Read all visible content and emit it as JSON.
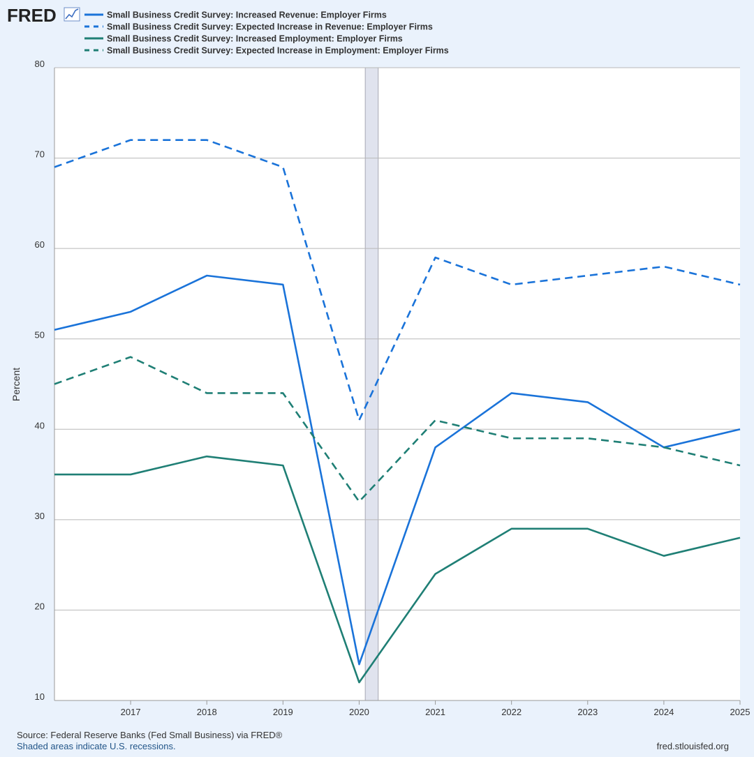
{
  "brand": {
    "logo_text": "FRED"
  },
  "colors": {
    "blue": "#1a73d9",
    "teal": "#1f7f75",
    "background": "#eaf2fc",
    "plot_background": "#ffffff",
    "grid": "#b8b8b8",
    "recession": "#e0e3ee"
  },
  "footer": {
    "source": "Source: Federal Reserve Banks (Fed Small Business) via FRED®",
    "note": "Shaded areas indicate U.S. recessions.",
    "site": "fred.stlouisfed.org"
  },
  "chart_data": {
    "type": "line",
    "title": "",
    "xlabel": "",
    "ylabel": "Percent",
    "x": [
      2016,
      2017,
      2018,
      2019,
      2020,
      2021,
      2022,
      2023,
      2024,
      2025
    ],
    "x_tick_labels": [
      "2017",
      "2018",
      "2019",
      "2020",
      "2021",
      "2022",
      "2023",
      "2024",
      "2025"
    ],
    "y_ticks": [
      10,
      20,
      30,
      40,
      50,
      60,
      70,
      80
    ],
    "xlim": [
      2016,
      2025
    ],
    "ylim": [
      10,
      80
    ],
    "grid": "horizontal",
    "legend_position": "top-left",
    "recessions": [
      {
        "start": 2020.08,
        "end": 2020.25
      }
    ],
    "series": [
      {
        "name": "Small Business Credit Survey: Increased Revenue: Employer Firms",
        "color": "#1a73d9",
        "dash": "solid",
        "values": [
          51,
          53,
          57,
          56,
          14,
          38,
          44,
          43,
          38,
          40
        ]
      },
      {
        "name": "Small Business Credit Survey: Expected Increase in Revenue: Employer Firms",
        "color": "#1a73d9",
        "dash": "dashed",
        "values": [
          69,
          72,
          72,
          69,
          41,
          59,
          56,
          57,
          58,
          56
        ]
      },
      {
        "name": "Small Business Credit Survey: Increased Employment: Employer Firms",
        "color": "#1f7f75",
        "dash": "solid",
        "values": [
          35,
          35,
          37,
          36,
          12,
          24,
          29,
          29,
          26,
          28
        ]
      },
      {
        "name": "Small Business Credit Survey: Expected Increase in Employment: Employer Firms",
        "color": "#1f7f75",
        "dash": "dashed",
        "values": [
          45,
          48,
          44,
          44,
          32,
          41,
          39,
          39,
          38,
          36
        ]
      }
    ]
  }
}
